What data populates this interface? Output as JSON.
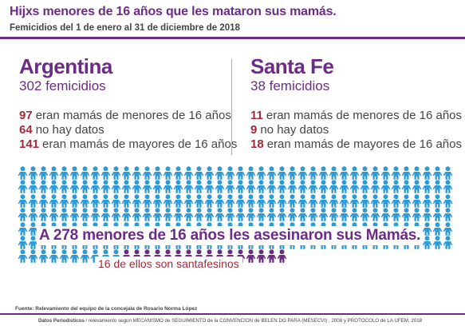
{
  "header": {
    "title": "Hijxs menores de 16 años que les mataron sus mamás.",
    "subtitle": "Femicidios  del 1 de enero al 31 de diciembre de 2018"
  },
  "argentina": {
    "name": "Argentina",
    "total": "302 femicidios",
    "stats": [
      {
        "value": "97",
        "label": "eran mamás de menores de 16 años"
      },
      {
        "value": "64",
        "label": "no hay datos"
      },
      {
        "value": "141",
        "label": "eran mamás de mayores de 16 años"
      }
    ]
  },
  "santa_fe": {
    "name": "Santa Fe",
    "total": "38 femicidios",
    "stats": [
      {
        "value": "11",
        "label": "eran mamás de menores de 16 años"
      },
      {
        "value": "9",
        "label": "no hay datos"
      },
      {
        "value": "18",
        "label": "eran mamás de mayores de 16 años"
      }
    ]
  },
  "figure": {
    "headline": "A 278 menores de 16 años les asesinaron sus Mamás.",
    "subheadline": "16 de ellos son santafesinos",
    "total_figures": 278,
    "highlight_figures": 16,
    "colors": {
      "base": "#2e9bd6",
      "highlight": "#6c2c86"
    },
    "icon": "child-icon"
  },
  "footer": {
    "source": "Fuente: Relevamiento del equipo de la concejala de Rosario Norma López",
    "credit_bold": "Datos Periodisticos",
    "credit_rest": " / relevamiento según MECANISMO de SEGUIMIENTO de la CONVENCION de BELEN DO PARA (MESECVI) , 2008 y PROTOCOLO de LA UFEM, 2018"
  },
  "colors": {
    "accent": "#6c2c86",
    "number": "#a32a3b",
    "text": "#444444"
  }
}
